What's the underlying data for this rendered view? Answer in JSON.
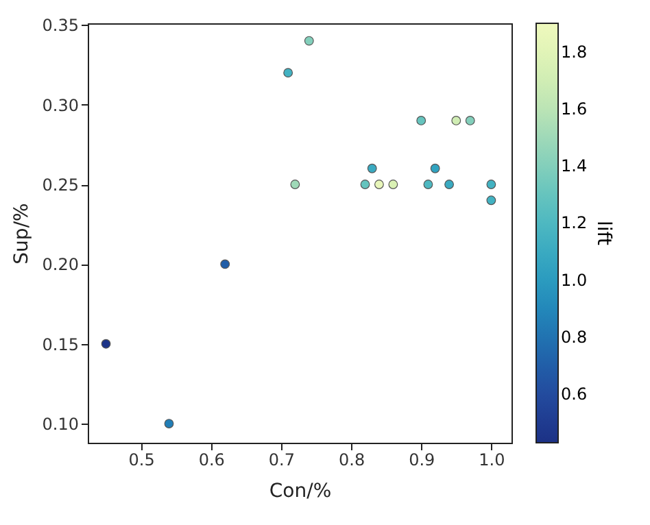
{
  "chart_data": {
    "type": "scatter",
    "xlabel": "Con/%",
    "ylabel": "Sup/%",
    "clabel": "lift",
    "marker": "circle",
    "grid": false,
    "xlim": [
      0.424,
      1.029
    ],
    "xticks": [
      {
        "value": 0.5,
        "label": "0.5"
      },
      {
        "value": 0.6,
        "label": "0.6"
      },
      {
        "value": 0.7,
        "label": "0.7"
      },
      {
        "value": 0.8,
        "label": "0.8"
      },
      {
        "value": 0.9,
        "label": "0.9"
      },
      {
        "value": 1.0,
        "label": "1.0"
      }
    ],
    "ylim": [
      0.088,
      0.351
    ],
    "yticks": [
      {
        "value": 0.1,
        "label": "0.10"
      },
      {
        "value": 0.15,
        "label": "0.15"
      },
      {
        "value": 0.2,
        "label": "0.20"
      },
      {
        "value": 0.25,
        "label": "0.25"
      },
      {
        "value": 0.3,
        "label": "0.30"
      },
      {
        "value": 0.35,
        "label": "0.35"
      }
    ],
    "clim": [
      0.43,
      1.9
    ],
    "cticks": [
      0.6,
      0.8,
      {
        "value": 1.0,
        "label": "1.0"
      },
      1.2,
      1.4,
      1.6,
      1.8
    ],
    "x": [
      0.45,
      0.54,
      0.62,
      0.71,
      0.74,
      0.72,
      0.83,
      0.82,
      0.84,
      0.86,
      0.9,
      0.91,
      0.92,
      0.94,
      0.95,
      0.97,
      1.0,
      1.0
    ],
    "values": [
      0.15,
      0.1,
      0.2,
      0.32,
      0.34,
      0.25,
      0.26,
      0.25,
      0.25,
      0.25,
      0.29,
      0.25,
      0.26,
      0.25,
      0.29,
      0.29,
      0.25,
      0.24
    ],
    "cvalues": [
      0.45,
      0.85,
      0.7,
      1.15,
      1.4,
      1.5,
      1.1,
      1.3,
      1.85,
      1.75,
      1.3,
      1.2,
      1.05,
      1.1,
      1.7,
      1.4,
      1.15,
      1.15
    ]
  }
}
